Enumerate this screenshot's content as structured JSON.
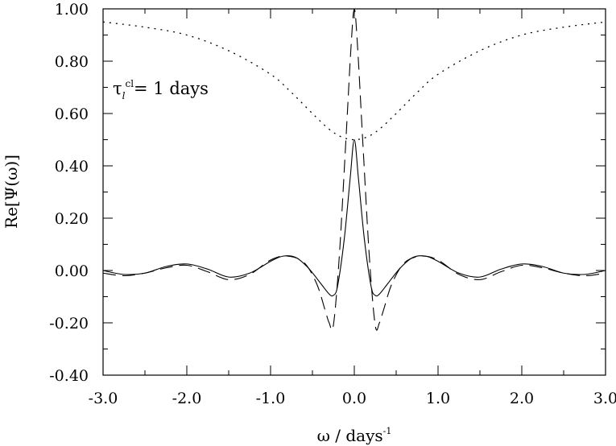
{
  "chart_data": {
    "type": "line",
    "xlabel": "ω / days",
    "xlabel_sup": "-1",
    "ylabel": "Re[Ψ(ω)]",
    "xlim": [
      -3.0,
      3.0
    ],
    "ylim": [
      -0.4,
      1.0
    ],
    "x_ticks": [
      -3.0,
      -2.0,
      -1.0,
      0.0,
      1.0,
      2.0,
      3.0
    ],
    "x_tick_labels": [
      "-3.0",
      "-2.0",
      "-1.0",
      "0.0",
      "1.0",
      "2.0",
      "3.0"
    ],
    "y_ticks": [
      -0.4,
      -0.2,
      0.0,
      0.2,
      0.4,
      0.6,
      0.8,
      1.0
    ],
    "y_tick_labels": [
      "-0.40",
      "-0.20",
      "0.00",
      "0.20",
      "0.40",
      "0.60",
      "0.80",
      "1.00"
    ],
    "annotation": {
      "symbol": "τ",
      "subscript": "l",
      "superscript": "cl",
      "text": "=  1  days"
    },
    "grid": false,
    "series": [
      {
        "style": "solid",
        "x": [
          -3.0,
          -2.75,
          -2.5,
          -2.25,
          -2.0,
          -1.75,
          -1.5,
          -1.25,
          -1.0,
          -0.85,
          -0.7,
          -0.55,
          -0.4,
          -0.3,
          -0.25,
          -0.2,
          -0.12,
          -0.05,
          0.0,
          0.05,
          0.12,
          0.2,
          0.25,
          0.3,
          0.4,
          0.55,
          0.7,
          0.85,
          1.0,
          1.25,
          1.5,
          1.75,
          2.0,
          2.25,
          2.5,
          2.75,
          3.0
        ],
        "y": [
          0.0,
          -0.015,
          -0.01,
          0.015,
          0.025,
          0.005,
          -0.025,
          -0.01,
          0.035,
          0.055,
          0.05,
          0.01,
          -0.05,
          -0.09,
          -0.095,
          -0.06,
          0.12,
          0.35,
          0.5,
          0.35,
          0.12,
          -0.06,
          -0.095,
          -0.09,
          -0.05,
          0.01,
          0.05,
          0.055,
          0.035,
          -0.01,
          -0.025,
          0.005,
          0.025,
          0.015,
          -0.01,
          -0.015,
          0.0
        ]
      },
      {
        "style": "dashed",
        "x": [
          -3.0,
          -2.75,
          -2.5,
          -2.25,
          -2.0,
          -1.75,
          -1.5,
          -1.25,
          -1.0,
          -0.8,
          -0.6,
          -0.45,
          -0.35,
          -0.3,
          -0.25,
          -0.18,
          -0.1,
          -0.04,
          0.0,
          0.04,
          0.1,
          0.18,
          0.25,
          0.3,
          0.35,
          0.45,
          0.6,
          0.8,
          1.0,
          1.25,
          1.5,
          1.75,
          2.0,
          2.25,
          2.5,
          2.75,
          3.0
        ],
        "y": [
          -0.01,
          -0.02,
          -0.01,
          0.01,
          0.02,
          -0.005,
          -0.035,
          -0.015,
          0.04,
          0.055,
          0.03,
          -0.05,
          -0.15,
          -0.2,
          -0.21,
          0.05,
          0.5,
          0.85,
          1.0,
          0.85,
          0.5,
          0.05,
          -0.21,
          -0.2,
          -0.15,
          -0.05,
          0.03,
          0.055,
          0.04,
          -0.015,
          -0.035,
          -0.005,
          0.02,
          0.01,
          -0.01,
          -0.02,
          -0.01
        ]
      },
      {
        "style": "dotted",
        "x": [
          -3.0,
          -2.5,
          -2.0,
          -1.5,
          -1.0,
          -0.75,
          -0.5,
          -0.3,
          -0.15,
          0.0,
          0.15,
          0.3,
          0.5,
          0.75,
          1.0,
          1.5,
          2.0,
          2.5,
          3.0
        ],
        "y": [
          0.95,
          0.93,
          0.9,
          0.84,
          0.75,
          0.68,
          0.6,
          0.54,
          0.51,
          0.5,
          0.51,
          0.54,
          0.6,
          0.68,
          0.75,
          0.84,
          0.9,
          0.93,
          0.95
        ]
      }
    ]
  }
}
